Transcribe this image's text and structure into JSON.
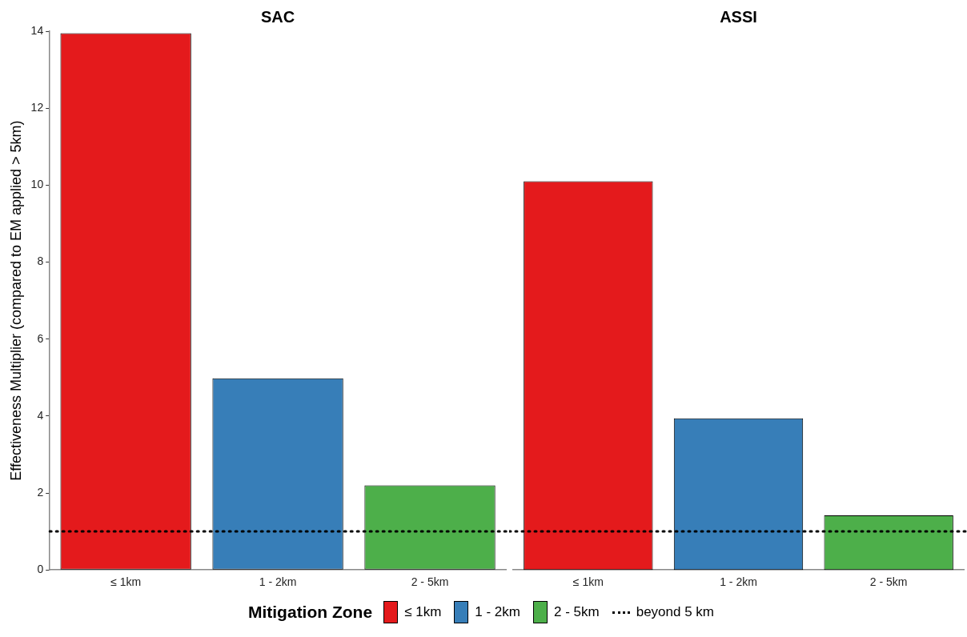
{
  "chart_data": [
    {
      "type": "bar",
      "title": "SAC",
      "ylabel": "Effectiveness Multiplier (compared to EM applied > 5km)",
      "categories": [
        "≤ 1km",
        "1 - 2km",
        "2 - 5km"
      ],
      "values": [
        13.95,
        4.98,
        2.2
      ],
      "colors": [
        "#e41a1c",
        "#377eb8",
        "#4daf4a"
      ],
      "ylim": [
        0,
        14
      ],
      "yticks": [
        0,
        2,
        4,
        6,
        8,
        10,
        12,
        14
      ],
      "grid": false,
      "legend": "bottom",
      "legend_title": "Mitigation Zone",
      "ref_lines": [
        {
          "axis": "y",
          "value": 1,
          "label": "beyond 5 km",
          "line_style": "dotted",
          "color": "#000000"
        }
      ]
    },
    {
      "type": "bar",
      "title": "ASSI",
      "categories": [
        "≤ 1km",
        "1 - 2km",
        "2 - 5km"
      ],
      "values": [
        10.1,
        3.94,
        1.42
      ],
      "colors": [
        "#e41a1c",
        "#377eb8",
        "#4daf4a"
      ],
      "ylim": [
        0,
        14
      ],
      "yticks": [
        0,
        2,
        4,
        6,
        8,
        10,
        12,
        14
      ],
      "grid": false,
      "tick_labels": "x",
      "ref_lines": [
        {
          "axis": "y",
          "value": 1,
          "line_style": "dotted",
          "color": "#000000"
        }
      ]
    }
  ]
}
